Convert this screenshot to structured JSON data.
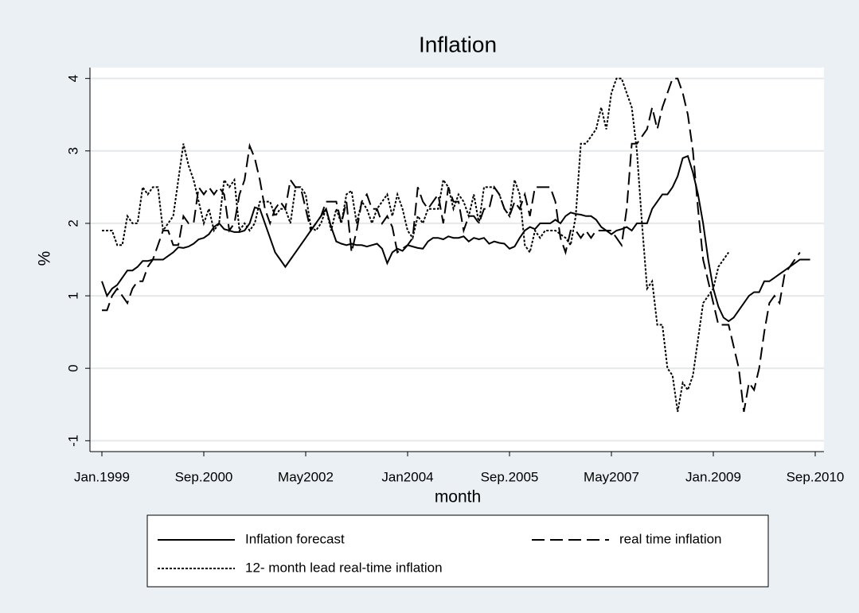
{
  "chart_data": {
    "type": "line",
    "title": "Inflation",
    "xlabel": "month",
    "ylabel": "%",
    "categories": [
      "Jan.1999",
      null,
      null,
      null,
      null,
      null,
      null,
      null,
      null,
      null,
      null,
      null,
      null,
      null,
      null,
      null,
      null,
      null,
      null,
      null,
      "Sep.2000",
      null,
      null,
      null,
      null,
      null,
      null,
      null,
      null,
      null,
      null,
      null,
      null,
      null,
      null,
      null,
      null,
      null,
      null,
      null,
      "May2002",
      null,
      null,
      null,
      null,
      null,
      null,
      null,
      null,
      null,
      null,
      null,
      null,
      null,
      null,
      null,
      null,
      null,
      null,
      null,
      "Jan2004",
      null,
      null,
      null,
      null,
      null,
      null,
      null,
      null,
      null,
      null,
      null,
      null,
      null,
      null,
      null,
      null,
      null,
      null,
      null,
      "Sep.2005",
      null,
      null,
      null,
      null,
      null,
      null,
      null,
      null,
      null,
      null,
      null,
      null,
      null,
      null,
      null,
      null,
      null,
      null,
      null,
      "May2007",
      null,
      null,
      null,
      null,
      null,
      null,
      null,
      null,
      null,
      null,
      null,
      null,
      null,
      null,
      null,
      null,
      null,
      null,
      null,
      "Jan.2009",
      null,
      null,
      null,
      null,
      null,
      null,
      null,
      null,
      null,
      null,
      null,
      null,
      null,
      null,
      null,
      null,
      null,
      null,
      null,
      "Sep.2010"
    ],
    "series": [
      {
        "name": "Inflation forecast",
        "color": "#000000",
        "line_style": "solid",
        "values": [
          1.2,
          1.0,
          1.1,
          1.15,
          1.25,
          1.35,
          1.35,
          1.4,
          1.48,
          1.48,
          1.5,
          1.5,
          1.5,
          1.55,
          1.6,
          1.67,
          1.66,
          1.68,
          1.72,
          1.78,
          1.8,
          1.85,
          1.95,
          2.0,
          1.92,
          1.9,
          1.88,
          1.88,
          1.9,
          2.0,
          2.22,
          2.2,
          2.0,
          1.8,
          1.6,
          1.5,
          1.4,
          1.5,
          1.6,
          1.7,
          1.8,
          1.9,
          2.0,
          2.1,
          2.2,
          1.95,
          1.75,
          1.72,
          1.7,
          1.72,
          1.7,
          1.7,
          1.68,
          1.7,
          1.72,
          1.65,
          1.45,
          1.6,
          1.65,
          1.62,
          1.7,
          1.68,
          1.66,
          1.65,
          1.75,
          1.8,
          1.8,
          1.78,
          1.82,
          1.8,
          1.8,
          1.82,
          1.75,
          1.8,
          1.78,
          1.8,
          1.72,
          1.75,
          1.73,
          1.72,
          1.65,
          1.68,
          1.8,
          1.9,
          1.95,
          1.92,
          2.0,
          2.0,
          2.0,
          2.05,
          2.0,
          2.1,
          2.15,
          2.13,
          2.12,
          2.1,
          2.1,
          2.05,
          1.95,
          1.9,
          1.85,
          1.9,
          1.92,
          1.95,
          1.9,
          2.0,
          2.0,
          2.0,
          2.2,
          2.3,
          2.4,
          2.4,
          2.5,
          2.65,
          2.9,
          2.93,
          2.7,
          2.4,
          2.0,
          1.5,
          1.1,
          0.85,
          0.7,
          0.65,
          0.7,
          0.8,
          0.9,
          1.0,
          1.05,
          1.05,
          1.2,
          1.2,
          1.25,
          1.3,
          1.35,
          1.4,
          1.45,
          1.5,
          1.5,
          1.5,
          null
        ]
      },
      {
        "name": "real time inflation",
        "color": "#000000",
        "line_style": "dashed",
        "values": [
          0.8,
          0.8,
          1.0,
          1.1,
          1.0,
          0.9,
          1.1,
          1.2,
          1.2,
          1.4,
          1.5,
          1.7,
          1.9,
          1.9,
          1.7,
          1.7,
          2.1,
          2.0,
          2.0,
          2.5,
          2.4,
          2.5,
          2.4,
          2.5,
          2.4,
          1.9,
          2.0,
          2.4,
          2.6,
          3.07,
          2.9,
          2.6,
          2.2,
          2.0,
          2.2,
          2.3,
          2.2,
          2.6,
          2.5,
          2.5,
          2.2,
          1.9,
          2.0,
          2.1,
          2.3,
          2.3,
          2.3,
          2.0,
          2.3,
          1.6,
          1.9,
          2.3,
          2.4,
          2.2,
          2.2,
          2.0,
          2.1,
          1.95,
          1.6,
          1.65,
          1.7,
          1.8,
          2.5,
          2.3,
          2.2,
          2.3,
          2.4,
          2.0,
          2.5,
          2.3,
          2.3,
          1.9,
          2.1,
          2.1,
          2.0,
          2.2,
          2.2,
          2.5,
          2.4,
          2.2,
          2.1,
          2.3,
          2.2,
          2.4,
          2.1,
          2.5,
          2.5,
          2.5,
          2.5,
          2.3,
          1.8,
          1.6,
          1.9,
          1.9,
          1.8,
          1.9,
          1.8,
          1.9,
          1.9,
          1.9,
          1.9,
          1.8,
          1.7,
          2.2,
          3.1,
          3.1,
          3.2,
          3.3,
          3.6,
          3.3,
          3.6,
          3.8,
          4.0,
          4.0,
          3.8,
          3.5,
          3.0,
          2.2,
          1.5,
          1.2,
          0.9,
          0.6,
          0.6,
          0.6,
          0.3,
          0.0,
          -0.6,
          -0.2,
          -0.3,
          0.0,
          0.5,
          0.9,
          1.0,
          0.9,
          1.3,
          1.4,
          1.5,
          1.6,
          null,
          null,
          null
        ]
      },
      {
        "name": "12- month lead real-time inflation",
        "color": "#000000",
        "line_style": "dotted",
        "values": [
          1.9,
          1.9,
          1.9,
          1.7,
          1.7,
          2.1,
          2.0,
          2.0,
          2.5,
          2.4,
          2.5,
          2.5,
          1.9,
          2.0,
          2.1,
          2.6,
          3.1,
          2.8,
          2.6,
          2.3,
          2.0,
          2.2,
          1.9,
          2.0,
          2.6,
          2.5,
          2.6,
          1.9,
          2.0,
          1.9,
          2.0,
          2.3,
          2.3,
          2.3,
          2.1,
          2.2,
          2.2,
          2.0,
          2.5,
          2.5,
          2.4,
          1.95,
          1.9,
          2.0,
          2.2,
          1.9,
          2.2,
          2.0,
          2.4,
          2.45,
          2.0,
          2.3,
          2.2,
          2.0,
          2.2,
          2.3,
          2.4,
          2.1,
          2.4,
          2.2,
          1.9,
          1.8,
          2.1,
          2.0,
          2.2,
          2.2,
          2.2,
          2.6,
          2.5,
          2.2,
          2.4,
          2.3,
          2.1,
          2.4,
          2.0,
          2.5,
          2.5,
          2.5,
          2.4,
          2.2,
          2.1,
          2.6,
          2.4,
          1.7,
          1.6,
          1.9,
          1.8,
          1.9,
          1.9,
          1.9,
          1.85,
          1.8,
          1.7,
          2.1,
          3.1,
          3.1,
          3.2,
          3.3,
          3.6,
          3.3,
          3.8,
          4.0,
          4.0,
          3.8,
          3.6,
          3.0,
          2.0,
          1.1,
          1.2,
          0.6,
          0.6,
          0.0,
          -0.1,
          -0.6,
          -0.2,
          -0.3,
          -0.1,
          0.4,
          0.9,
          1.0,
          1.1,
          1.4,
          1.5,
          1.6,
          null,
          null,
          null,
          null,
          null,
          null,
          null,
          null,
          null,
          null,
          null,
          null,
          null,
          null,
          null,
          null,
          null
        ]
      }
    ],
    "ylim": [
      -1.15,
      4.15
    ],
    "yticks": [
      -1,
      0,
      1,
      2,
      3,
      4
    ],
    "grid": true,
    "legend": "bottom"
  }
}
